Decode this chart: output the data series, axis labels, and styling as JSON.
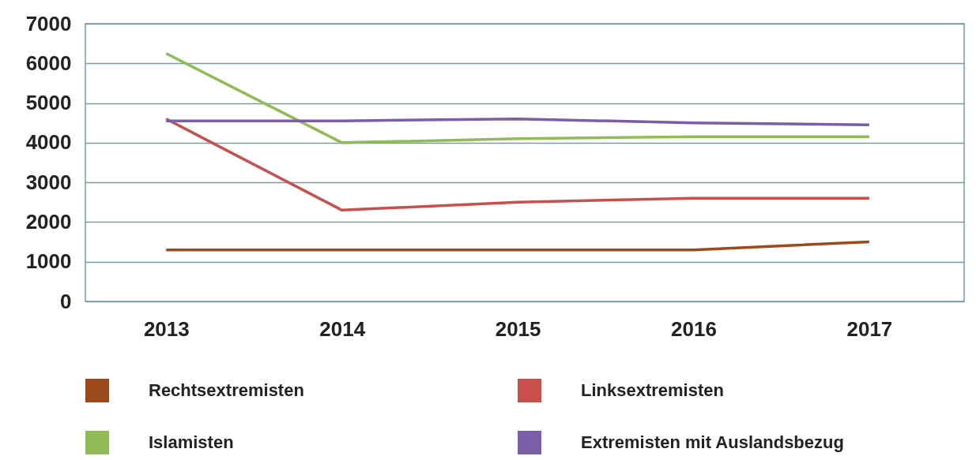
{
  "chart_data": {
    "type": "line",
    "categories": [
      "2013",
      "2014",
      "2015",
      "2016",
      "2017"
    ],
    "ylim": [
      0,
      7000
    ],
    "yticks": [
      0,
      1000,
      2000,
      3000,
      4000,
      5000,
      6000,
      7000
    ],
    "grid": "y",
    "legend": "bottom",
    "marker": "none",
    "line_style": "solid",
    "series": [
      {
        "name": "Rechtsextremisten",
        "color": "#9c4a1a",
        "values": [
          1300,
          1300,
          1300,
          1300,
          1500
        ]
      },
      {
        "name": "Linksextremisten",
        "color": "#c9504a",
        "values": [
          4600,
          2300,
          2500,
          2600,
          2600
        ]
      },
      {
        "name": "Islamisten",
        "color": "#8fbc57",
        "values": [
          6250,
          4000,
          4100,
          4150,
          4150
        ]
      },
      {
        "name": "Extremisten mit Auslandsbezug",
        "color": "#7b5ea7",
        "values": [
          4550,
          4550,
          4600,
          4500,
          4450
        ]
      }
    ]
  }
}
